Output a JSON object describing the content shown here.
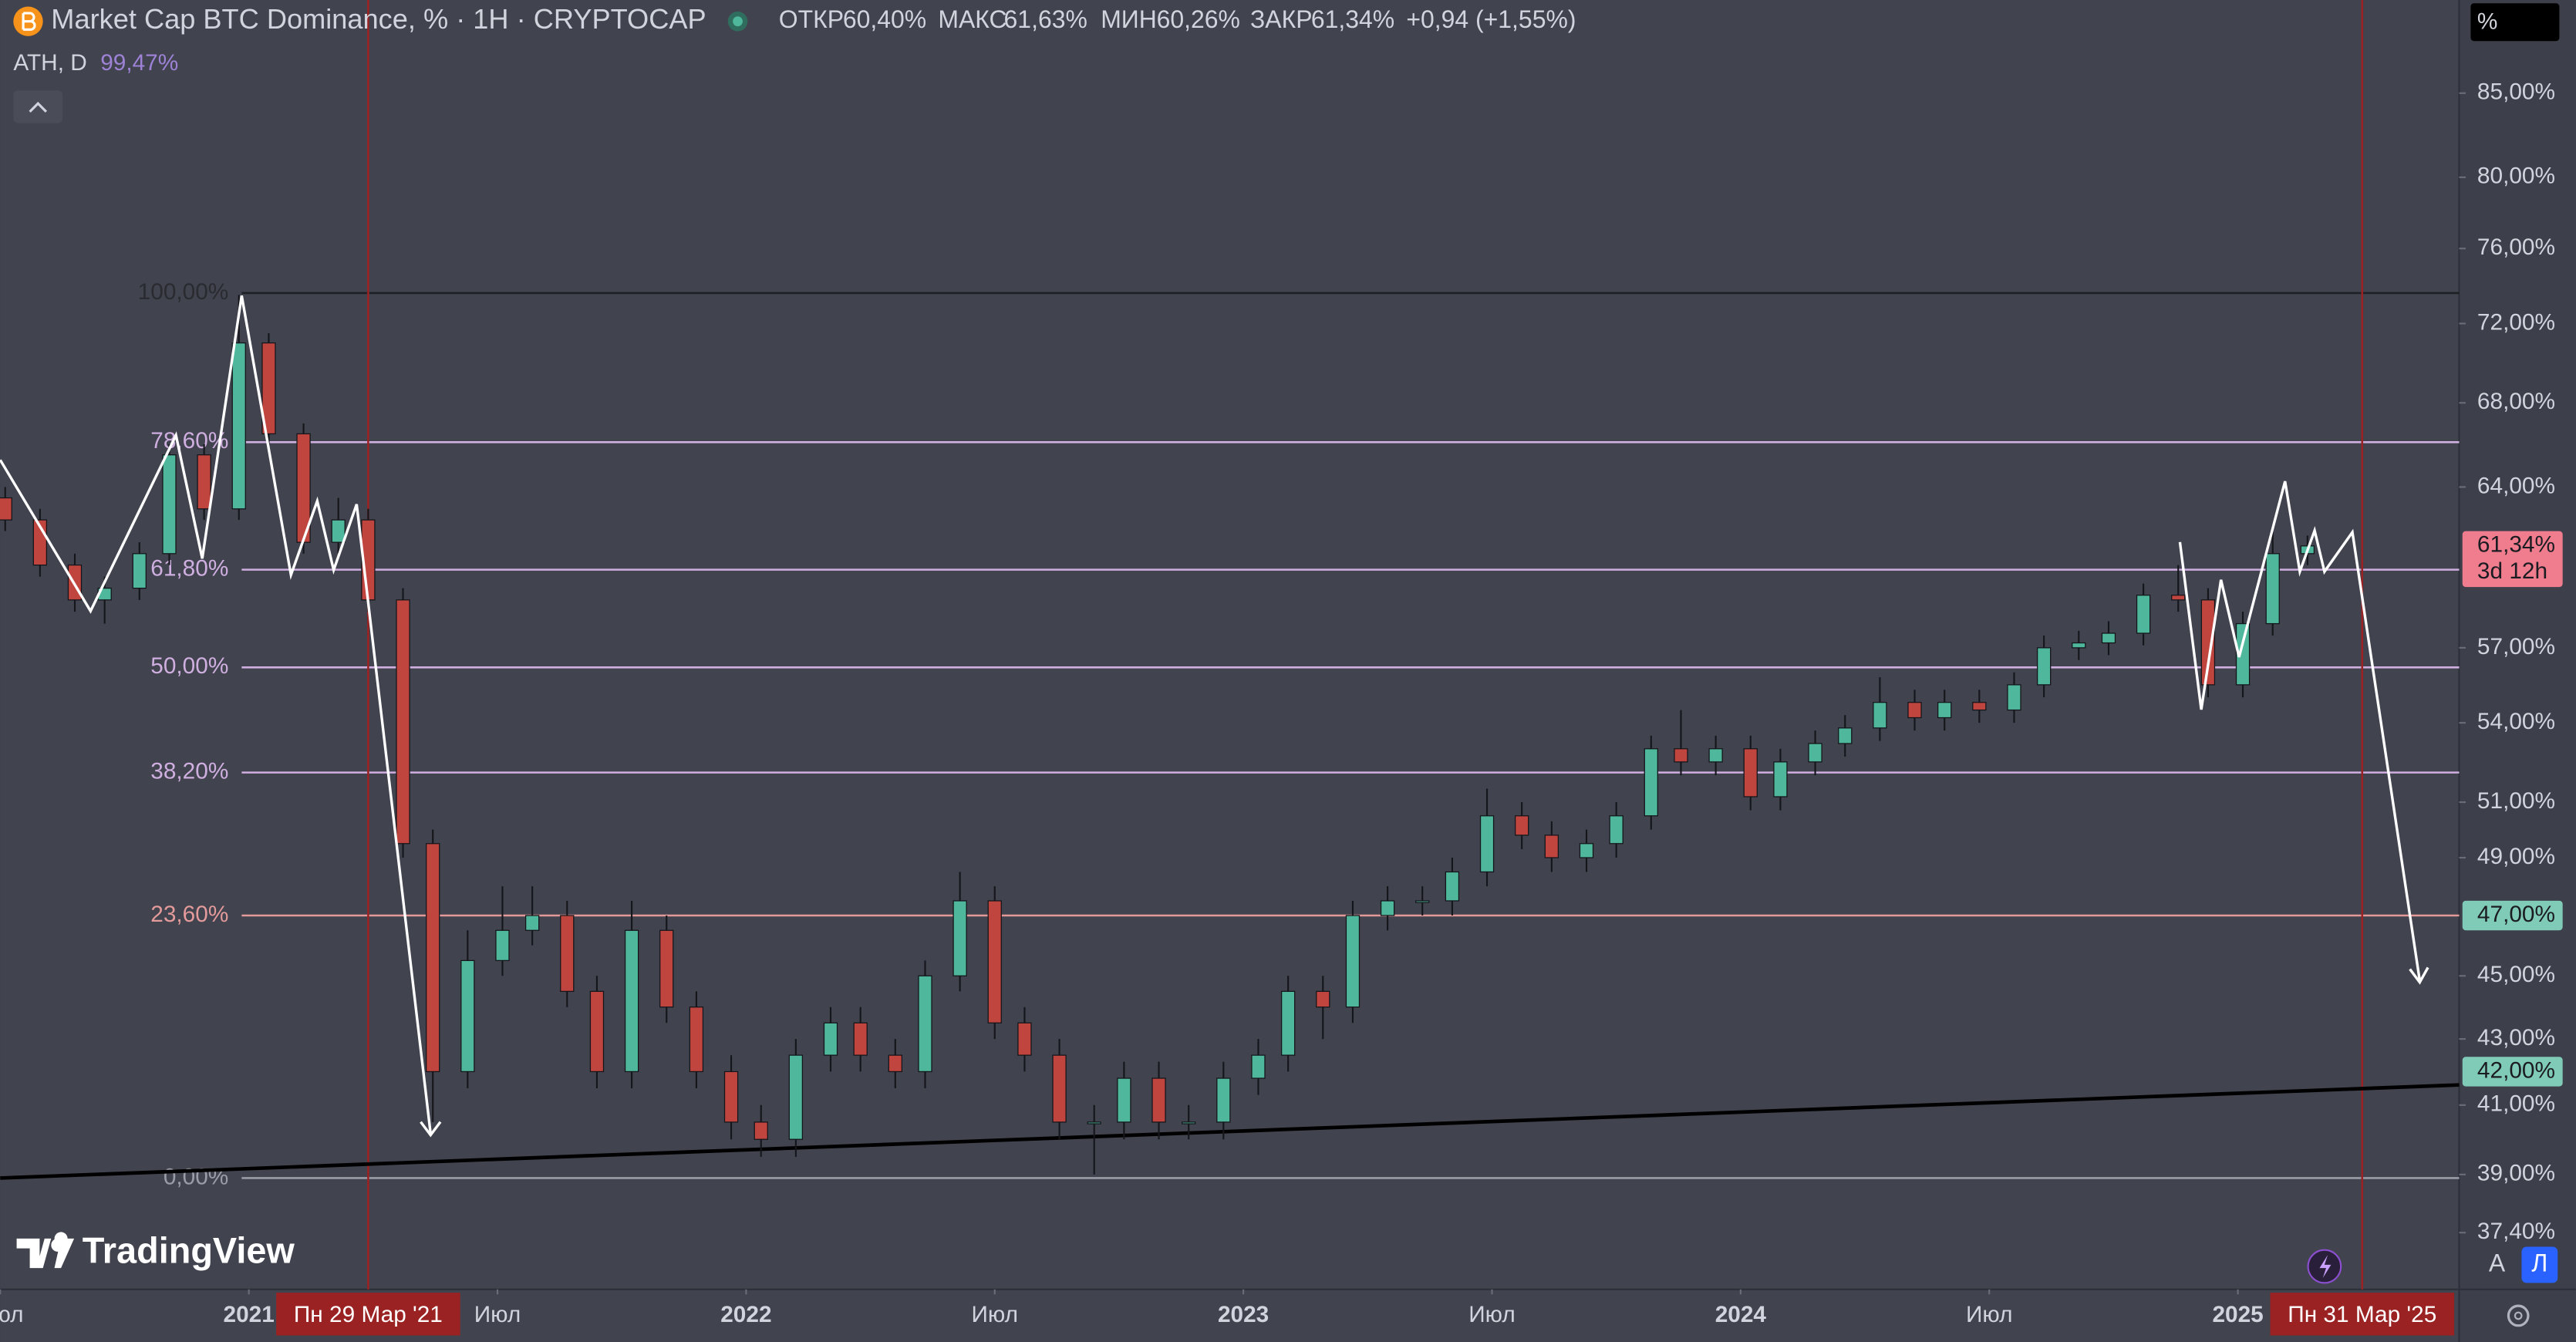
{
  "chart_data": {
    "type": "candlestick",
    "title": "Market Cap BTC Dominance, % · 1H · CRYPTOCAP",
    "log_scale": true,
    "grid": false,
    "up_color": "#4fb79b",
    "down_color": "#c0453f",
    "xlim": [
      2020.5,
      2025.445
    ],
    "ylim": [
      35.9,
      90.9
    ],
    "xticks": [
      {
        "value": 2020.5,
        "label": "Июл"
      },
      2021,
      {
        "value": 2021.5,
        "label": "Июл"
      },
      2022,
      {
        "value": 2022.5,
        "label": "Июл"
      },
      2023,
      {
        "value": 2023.5,
        "label": "Июл"
      },
      2024,
      {
        "value": 2024.5,
        "label": "Июл"
      },
      2025
    ],
    "yticks": [
      {
        "value": 85,
        "label": "85,00%"
      },
      {
        "value": 80,
        "label": "80,00%"
      },
      {
        "value": 76,
        "label": "76,00%"
      },
      {
        "value": 72,
        "label": "72,00%"
      },
      {
        "value": 68,
        "label": "68,00%"
      },
      {
        "value": 64,
        "label": "64,00%"
      },
      {
        "value": 57,
        "label": "57,00%"
      },
      {
        "value": 54,
        "label": "54,00%"
      },
      {
        "value": 51,
        "label": "51,00%"
      },
      {
        "value": 49,
        "label": "49,00%"
      },
      {
        "value": 45,
        "label": "45,00%"
      },
      {
        "value": 43,
        "label": "43,00%"
      },
      {
        "value": 41,
        "label": "41,00%"
      },
      {
        "value": 39,
        "label": "39,00%"
      },
      {
        "value": 37.4,
        "label": "37,40%"
      }
    ],
    "x": [
      2020.51,
      2020.58,
      2020.65,
      2020.71,
      2020.78,
      2020.84,
      2020.91,
      2020.98,
      2021.04,
      2021.11,
      2021.18,
      2021.24,
      2021.31,
      2021.37,
      2021.44,
      2021.51,
      2021.57,
      2021.64,
      2021.7,
      2021.77,
      2021.84,
      2021.9,
      2021.97,
      2022.03,
      2022.1,
      2022.17,
      2022.23,
      2022.3,
      2022.36,
      2022.43,
      2022.5,
      2022.56,
      2022.63,
      2022.7,
      2022.76,
      2022.83,
      2022.89,
      2022.96,
      2023.03,
      2023.09,
      2023.16,
      2023.22,
      2023.29,
      2023.36,
      2023.42,
      2023.49,
      2023.56,
      2023.62,
      2023.69,
      2023.75,
      2023.82,
      2023.88,
      2023.95,
      2024.02,
      2024.08,
      2024.15,
      2024.21,
      2024.28,
      2024.35,
      2024.41,
      2024.48,
      2024.55,
      2024.61,
      2024.68,
      2024.74,
      2024.81,
      2024.88,
      2024.94,
      2025.01,
      2025.07,
      2025.14
    ],
    "open": [
      63.5,
      62.5,
      60.5,
      59.0,
      59.5,
      61.0,
      65.5,
      63.0,
      71.0,
      66.5,
      61.5,
      62.5,
      59.0,
      49.5,
      42.0,
      45.5,
      46.5,
      47.0,
      44.5,
      42.0,
      46.5,
      44.0,
      42.0,
      40.5,
      40.0,
      42.5,
      43.5,
      42.5,
      42.0,
      45.0,
      47.5,
      43.5,
      42.5,
      40.5,
      40.5,
      41.8,
      40.5,
      40.5,
      41.8,
      42.5,
      44.5,
      44.0,
      47.0,
      47.5,
      47.5,
      48.5,
      50.5,
      49.8,
      49.0,
      49.5,
      50.5,
      53.0,
      52.5,
      53.0,
      51.2,
      52.5,
      53.2,
      53.8,
      54.8,
      54.2,
      54.8,
      54.5,
      55.5,
      57.0,
      57.2,
      57.6,
      59.2,
      59.0,
      55.5,
      58.0,
      61.0
    ],
    "high": [
      64.0,
      63.0,
      61.0,
      60.0,
      61.5,
      66.0,
      66.0,
      73.5,
      71.5,
      67.0,
      63.5,
      63.0,
      59.5,
      50.0,
      46.5,
      48.0,
      48.0,
      47.5,
      45.0,
      47.5,
      47.0,
      44.5,
      42.5,
      41.0,
      43.0,
      44.0,
      44.0,
      43.0,
      45.5,
      48.5,
      48.0,
      44.0,
      43.0,
      41.0,
      42.3,
      42.3,
      41.0,
      42.3,
      43.0,
      45.0,
      45.0,
      47.5,
      48.0,
      48.0,
      49.0,
      51.5,
      51.0,
      50.3,
      50.0,
      51.0,
      53.5,
      54.5,
      53.5,
      53.5,
      53.0,
      53.7,
      54.3,
      55.8,
      55.3,
      55.3,
      55.3,
      56.0,
      57.5,
      57.7,
      58.1,
      59.7,
      60.5,
      59.5,
      58.5,
      62.0,
      61.8
    ],
    "low": [
      62.0,
      60.0,
      58.5,
      58.0,
      59.0,
      60.5,
      62.5,
      62.5,
      66.0,
      61.0,
      61.0,
      58.5,
      49.0,
      40.5,
      41.5,
      45.0,
      46.0,
      44.0,
      41.5,
      41.5,
      43.5,
      41.5,
      40.0,
      39.5,
      39.5,
      42.0,
      42.0,
      41.5,
      41.5,
      44.5,
      43.0,
      42.0,
      40.0,
      39.0,
      40.0,
      40.0,
      40.0,
      40.0,
      41.3,
      42.0,
      43.0,
      43.5,
      46.5,
      47.0,
      47.0,
      48.0,
      49.3,
      48.5,
      48.5,
      49.0,
      50.0,
      52.0,
      52.0,
      50.7,
      50.7,
      52.0,
      52.7,
      53.3,
      53.7,
      53.7,
      54.0,
      54.0,
      55.0,
      56.5,
      56.7,
      57.1,
      58.5,
      55.0,
      55.0,
      57.5,
      60.5
    ],
    "close": [
      62.5,
      60.5,
      59.0,
      59.5,
      61.0,
      65.5,
      63.0,
      71.0,
      66.5,
      61.5,
      62.5,
      59.0,
      49.5,
      42.0,
      45.5,
      46.5,
      47.0,
      44.5,
      42.0,
      46.5,
      44.0,
      42.0,
      40.5,
      40.0,
      42.5,
      43.5,
      42.5,
      42.0,
      45.0,
      47.5,
      43.5,
      42.5,
      40.5,
      40.5,
      41.8,
      40.5,
      40.5,
      41.8,
      42.5,
      44.5,
      44.0,
      47.0,
      47.5,
      47.5,
      48.5,
      50.5,
      49.8,
      49.0,
      49.5,
      50.5,
      53.0,
      52.5,
      53.0,
      51.2,
      52.5,
      53.2,
      53.8,
      54.8,
      54.2,
      54.8,
      54.5,
      55.5,
      57.0,
      57.2,
      57.6,
      59.2,
      59.0,
      55.5,
      58.0,
      61.0,
      61.34
    ],
    "fib_levels": [
      {
        "label": "100,00%",
        "price": 73.6,
        "color": "#1f2026",
        "text_color": "#2a2b30"
      },
      {
        "label": "78,60%",
        "price": 66.1,
        "color": "#cfaee0",
        "text_color": "#cfaee0"
      },
      {
        "label": "61,80%",
        "price": 60.3,
        "color": "#cfaee0",
        "text_color": "#cfaee0"
      },
      {
        "label": "50,00%",
        "price": 56.2,
        "color": "#cfaee0",
        "text_color": "#cfaee0"
      },
      {
        "label": "38,20%",
        "price": 52.1,
        "color": "#cfaee0",
        "text_color": "#cfaee0"
      },
      {
        "label": "23,60%",
        "price": 47.0,
        "color": "#e39a9a",
        "text_color": "#e39a9a"
      },
      {
        "label": "0,00%",
        "price": 38.9,
        "color": "#9a9ca6",
        "text_color": "#9a9ca6"
      }
    ],
    "trendline": {
      "x": [
        2020.5,
        2025.445
      ],
      "y": [
        38.9,
        41.6
      ],
      "color": "#000000"
    },
    "vlines": [
      {
        "value": 2021.24,
        "label": "Пн 29 Мар '21"
      },
      {
        "value": 2025.25,
        "label": "Пн 31 Мар '25"
      }
    ],
    "vline_color": "#9b2222",
    "price_badges": [
      {
        "value": 61.34,
        "label": "61,34%",
        "sublabel": "3d 12h",
        "color": "#f07d8e"
      },
      {
        "value": 47.0,
        "label": "47,00%",
        "color": "#80cbb8"
      },
      {
        "value": 42.0,
        "label": "42,00%",
        "color": "#80cbb8"
      }
    ]
  },
  "ui": {
    "ohlc": [
      {
        "label": "ОТКР",
        "value": "60,40%"
      },
      {
        "label": "МАКС",
        "value": "61,63%"
      },
      {
        "label": "МИН",
        "value": "60,26%"
      },
      {
        "label": "ЗАКР",
        "value": "61,34%"
      }
    ],
    "change": "+0,94 (+1,55%)",
    "indicator": "ATH, D",
    "indicator_value": "99,47%",
    "logo": "TradingView",
    "scale_unit": "%",
    "buttons": [
      "A",
      "Л"
    ]
  }
}
